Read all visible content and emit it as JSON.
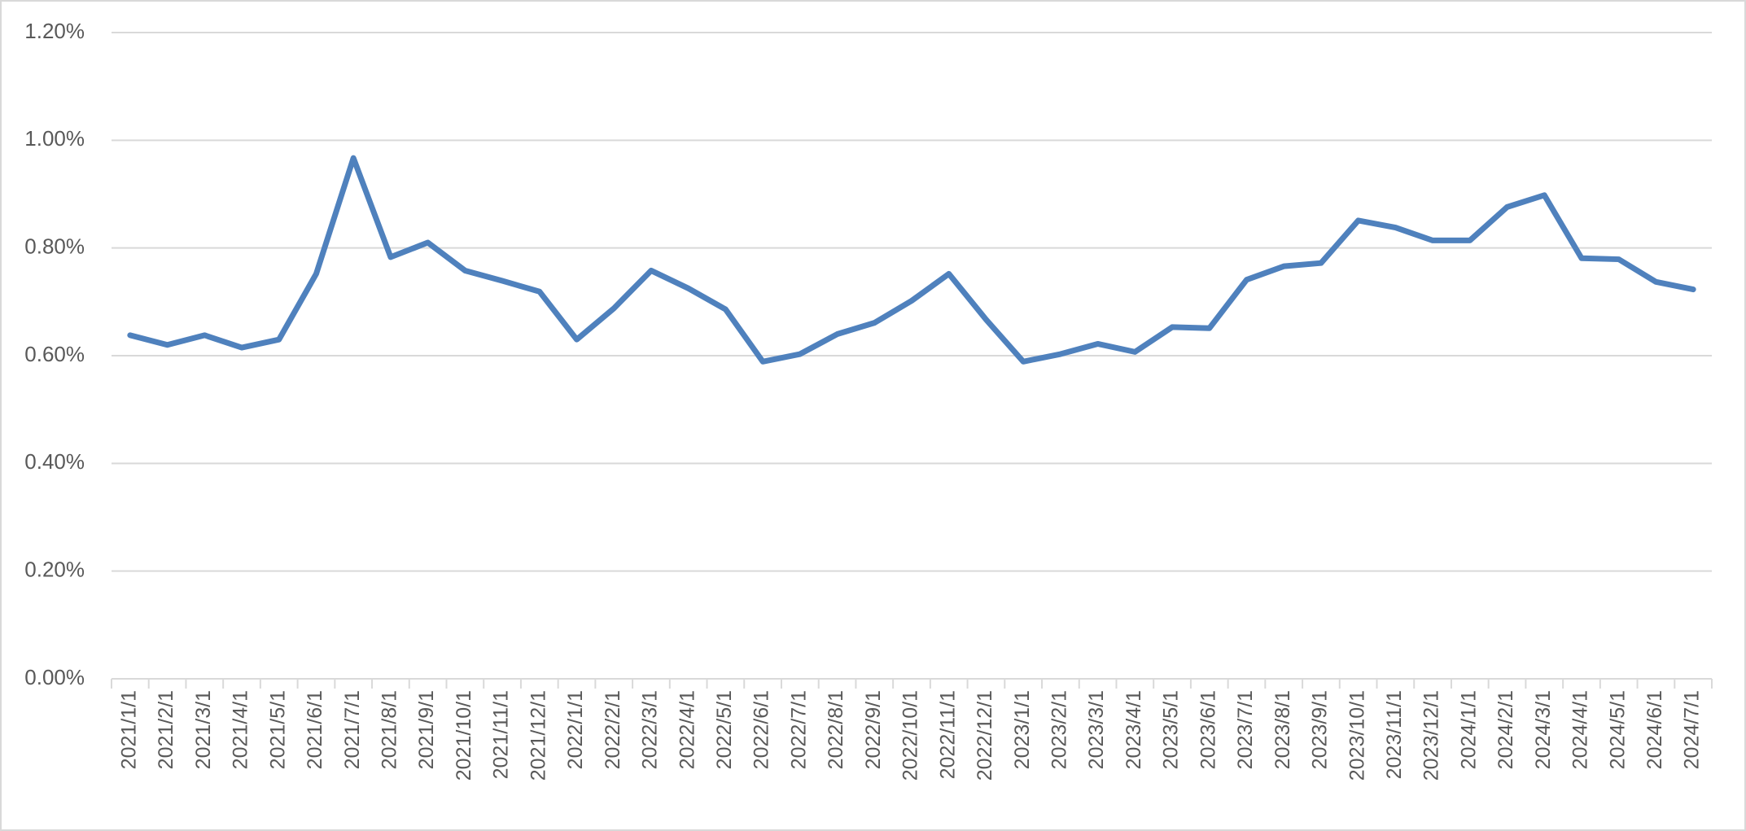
{
  "chart_data": {
    "type": "line",
    "categories": [
      "2021/1/1",
      "2021/2/1",
      "2021/3/1",
      "2021/4/1",
      "2021/5/1",
      "2021/6/1",
      "2021/7/1",
      "2021/8/1",
      "2021/9/1",
      "2021/10/1",
      "2021/11/1",
      "2021/12/1",
      "2022/1/1",
      "2022/2/1",
      "2022/3/1",
      "2022/4/1",
      "2022/5/1",
      "2022/6/1",
      "2022/7/1",
      "2022/8/1",
      "2022/9/1",
      "2022/10/1",
      "2022/11/1",
      "2022/12/1",
      "2023/1/1",
      "2023/2/1",
      "2023/3/1",
      "2023/4/1",
      "2023/5/1",
      "2023/6/1",
      "2023/7/1",
      "2023/8/1",
      "2023/9/1",
      "2023/10/1",
      "2023/11/1",
      "2023/12/1",
      "2024/1/1",
      "2024/2/1",
      "2024/3/1",
      "2024/4/1",
      "2024/5/1",
      "2024/6/1",
      "2024/7/1"
    ],
    "values": [
      0.638,
      0.62,
      0.638,
      0.615,
      0.63,
      0.752,
      0.967,
      0.783,
      0.81,
      0.758,
      0.739,
      0.719,
      0.63,
      0.688,
      0.758,
      0.725,
      0.686,
      0.589,
      0.603,
      0.64,
      0.661,
      0.702,
      0.752,
      0.667,
      0.589,
      0.603,
      0.622,
      0.607,
      0.653,
      0.651,
      0.741,
      0.766,
      0.772,
      0.851,
      0.838,
      0.814,
      0.814,
      0.876,
      0.898,
      0.781,
      0.779,
      0.737,
      0.723
    ],
    "color": "#4f81bd",
    "ylim": [
      0,
      1.2
    ],
    "yticks": [
      {
        "value": 0,
        "label": "0.00%"
      },
      {
        "value": 0.2,
        "label": "0.20%"
      },
      {
        "value": 0.4,
        "label": "0.40%"
      },
      {
        "value": 0.6,
        "label": "0.60%"
      },
      {
        "value": 0.8,
        "label": "0.80%"
      },
      {
        "value": 1.0,
        "label": "1.00%"
      },
      {
        "value": 1.2,
        "label": "1.20%"
      }
    ],
    "grid": true
  }
}
